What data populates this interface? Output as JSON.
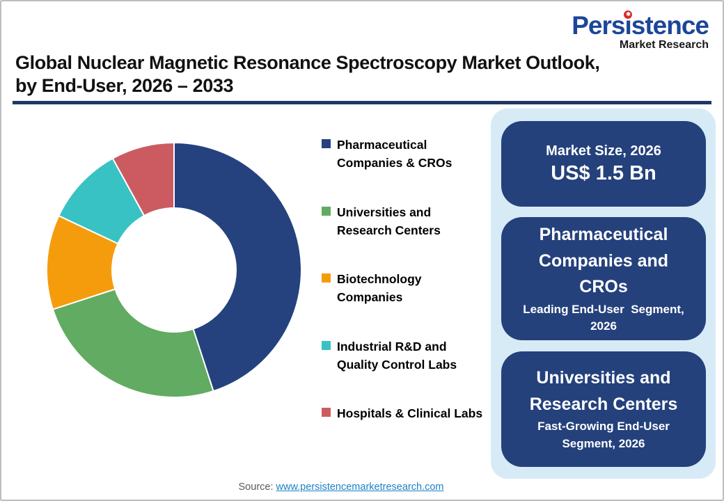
{
  "logo": {
    "part1": "Pers",
    "i_char": "i",
    "part2": "stence",
    "star_glyph": "✱",
    "subtitle": "Market Research",
    "brand_blue": "#1C4699",
    "brand_red": "#D92B27"
  },
  "header": {
    "title_line1": "Global Nuclear Magnetic Resonance Spectroscopy Market Outlook,",
    "title_line2": "by End-User, 2026 – 2033",
    "rule_color": "#1F3864"
  },
  "chart_data": {
    "type": "pie",
    "subtype": "donut",
    "title": "Global Nuclear Magnetic Resonance Spectroscopy Market Outlook, by End-User, 2026 – 2033",
    "categories": [
      "Pharmaceutical Companies & CROs",
      "Universities and Research Centers",
      "Biotechnology Companies",
      "Industrial R&D and Quality Control Labs",
      "Hospitals & Clinical Labs"
    ],
    "values": [
      45,
      25,
      12,
      10,
      8
    ],
    "values_unit": "percent share, estimated from arc angles (no data labels shown)",
    "colors": [
      "#25427F",
      "#62AB62",
      "#F59C0D",
      "#38C2C4",
      "#CC5B61"
    ],
    "start_angle_deg": 0,
    "clockwise": true,
    "donut_hole_ratio": 0.49,
    "legend_position": "right",
    "legend": [
      {
        "label": "Pharmaceutical\nCompanies & CROs",
        "color": "#25427F"
      },
      {
        "label": "Universities and\nResearch Centers",
        "color": "#62AB62"
      },
      {
        "label": "Biotechnology\nCompanies",
        "color": "#F59C0D"
      },
      {
        "label": "Industrial R&D and\nQuality Control Labs",
        "color": "#38C2C4"
      },
      {
        "label": "Hospitals & Clinical Labs",
        "color": "#CC5B61"
      }
    ]
  },
  "panel": {
    "bg": "#D7EBF7",
    "box_bg": "#24417C",
    "box1": {
      "title": "Market Size, 2026",
      "value": "US$ 1.5 Bn"
    },
    "box2": {
      "title": "Pharmaceutical\nCompanies and\nCROs",
      "subtitle": "Leading End-User  Segment,\n2026"
    },
    "box3": {
      "title": "Universities and\nResearch Centers",
      "subtitle": "Fast-Growing End-User\nSegment, 2026"
    }
  },
  "footer": {
    "source_label": "Source: ",
    "source_link": "www.persistencemarketresearch.com",
    "link_color": "#1B82C5"
  }
}
